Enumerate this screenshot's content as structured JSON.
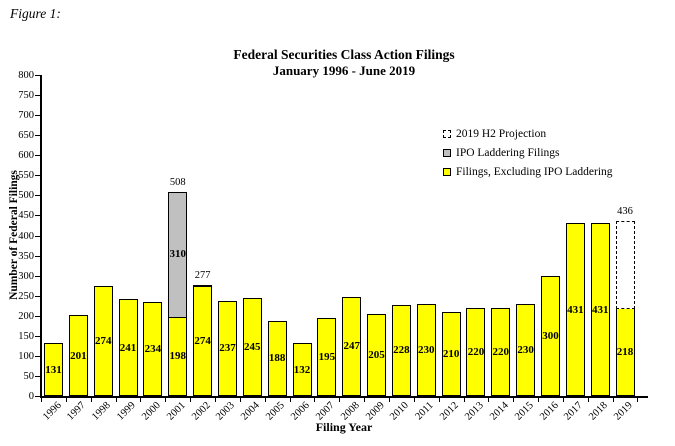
{
  "figure_label": "Figure 1:",
  "chart_data": {
    "type": "bar",
    "title": "Federal Securities Class Action Filings",
    "subtitle": "January 1996 - June 2019",
    "xlabel": "Filing Year",
    "ylabel": "Number of Federal Filings",
    "ylim": [
      0,
      800
    ],
    "ytick_step": 50,
    "grid": false,
    "stacked": true,
    "legend_position": "inside-upper-right",
    "legend": [
      {
        "label": "2019 H2 Projection",
        "swatch": "dashed-outline"
      },
      {
        "label": "IPO Laddering Filings",
        "swatch": "gray"
      },
      {
        "label": "Filings, Excluding IPO Laddering",
        "swatch": "yellow"
      }
    ],
    "categories": [
      "1996",
      "1997",
      "1998",
      "1999",
      "2000",
      "2001",
      "2002",
      "2003",
      "2004",
      "2005",
      "2006",
      "2007",
      "2008",
      "2009",
      "2010",
      "2011",
      "2012",
      "2013",
      "2014",
      "2015",
      "2016",
      "2017",
      "2018",
      "2019"
    ],
    "series": [
      {
        "name": "Filings, Excluding IPO Laddering",
        "color": "#ffff00",
        "values": [
          131,
          201,
          274,
          241,
          234,
          198,
          274,
          237,
          245,
          188,
          132,
          195,
          247,
          205,
          228,
          230,
          210,
          220,
          220,
          230,
          300,
          431,
          431,
          218
        ]
      },
      {
        "name": "IPO Laddering Filings",
        "color": "#c0c0c0",
        "values": [
          0,
          0,
          0,
          0,
          0,
          310,
          3,
          0,
          0,
          0,
          0,
          0,
          0,
          0,
          0,
          0,
          0,
          0,
          0,
          0,
          0,
          0,
          0,
          0
        ]
      },
      {
        "name": "2019 H2 Projection",
        "style": "dashed-outline-to-total",
        "values": [
          null,
          null,
          null,
          null,
          null,
          null,
          null,
          null,
          null,
          null,
          null,
          null,
          null,
          null,
          null,
          null,
          null,
          null,
          null,
          null,
          null,
          null,
          null,
          436
        ]
      }
    ],
    "annotations": [
      {
        "category": "2001",
        "value": 508,
        "text": "508"
      },
      {
        "category": "2002",
        "value": 277,
        "text": "277"
      },
      {
        "category": "2019",
        "value": 436,
        "text": "436"
      }
    ]
  },
  "colors": {
    "bar_fill": "#ffff00",
    "ipo_fill": "#c0c0c0",
    "axis": "#000000",
    "background": "#ffffff"
  }
}
